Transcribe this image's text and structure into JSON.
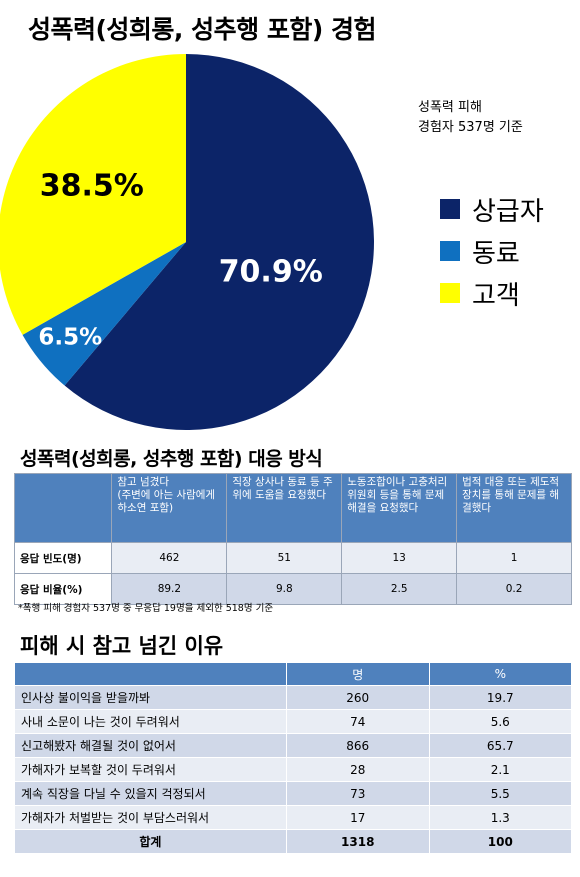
{
  "title": "성폭력(성희롱, 성추행 포함) 경험",
  "note_line1": "성폭력 피해",
  "note_line2": "경험자 537명 기준",
  "chart_data": {
    "type": "pie",
    "slices": [
      {
        "name": "상급자",
        "value": 70.9,
        "label": "70.9%",
        "color": "#0c2468"
      },
      {
        "name": "동료",
        "value": 6.5,
        "label": "6.5%",
        "color": "#0f70c0"
      },
      {
        "name": "고객",
        "value": 38.5,
        "label": "38.5%",
        "color": "#ffff00"
      }
    ],
    "legend_placement": "right"
  },
  "section2": {
    "title": "성폭력(성희롱, 성추행 포함) 대응 방식",
    "columns": [
      "참고 넘겼다\n(주변에 아는 사람에게 하소연 포함)",
      "직장 상사나 동료 등 주위에 도움을 요청했다",
      "노동조합이나 고충처리위원회 등을 통해 문제해결을 요청했다",
      "법적 대응 또는 제도적 장치를 통해 문제를 해결했다"
    ],
    "rows": [
      {
        "label": "응답 빈도(명)",
        "values": [
          "462",
          "51",
          "13",
          "1"
        ]
      },
      {
        "label": "응답 비율(%)",
        "values": [
          "89.2",
          "9.8",
          "2.5",
          "0.2"
        ]
      }
    ],
    "footnote": "*폭행 피해 경험자 537명 중 무응답 19명을 제외한 518명 기준"
  },
  "section3": {
    "title": "피해 시 참고 넘긴 이유",
    "col_count": "명",
    "col_pct": "%",
    "rows": [
      {
        "reason": "인사상 불이익을 받을까봐",
        "count": "260",
        "pct": "19.7"
      },
      {
        "reason": "사내 소문이 나는 것이 두려워서",
        "count": "74",
        "pct": "5.6"
      },
      {
        "reason": "신고해봤자 해결될 것이 없어서",
        "count": "866",
        "pct": "65.7"
      },
      {
        "reason": "가해자가 보복할 것이 두려워서",
        "count": "28",
        "pct": "2.1"
      },
      {
        "reason": "계속 직장을 다닐 수 있을지 걱정되서",
        "count": "73",
        "pct": "5.5"
      },
      {
        "reason": "가해자가 처벌받는 것이 부담스러워서",
        "count": "17",
        "pct": "1.3"
      }
    ],
    "total": {
      "label": "합계",
      "count": "1318",
      "pct": "100"
    }
  }
}
